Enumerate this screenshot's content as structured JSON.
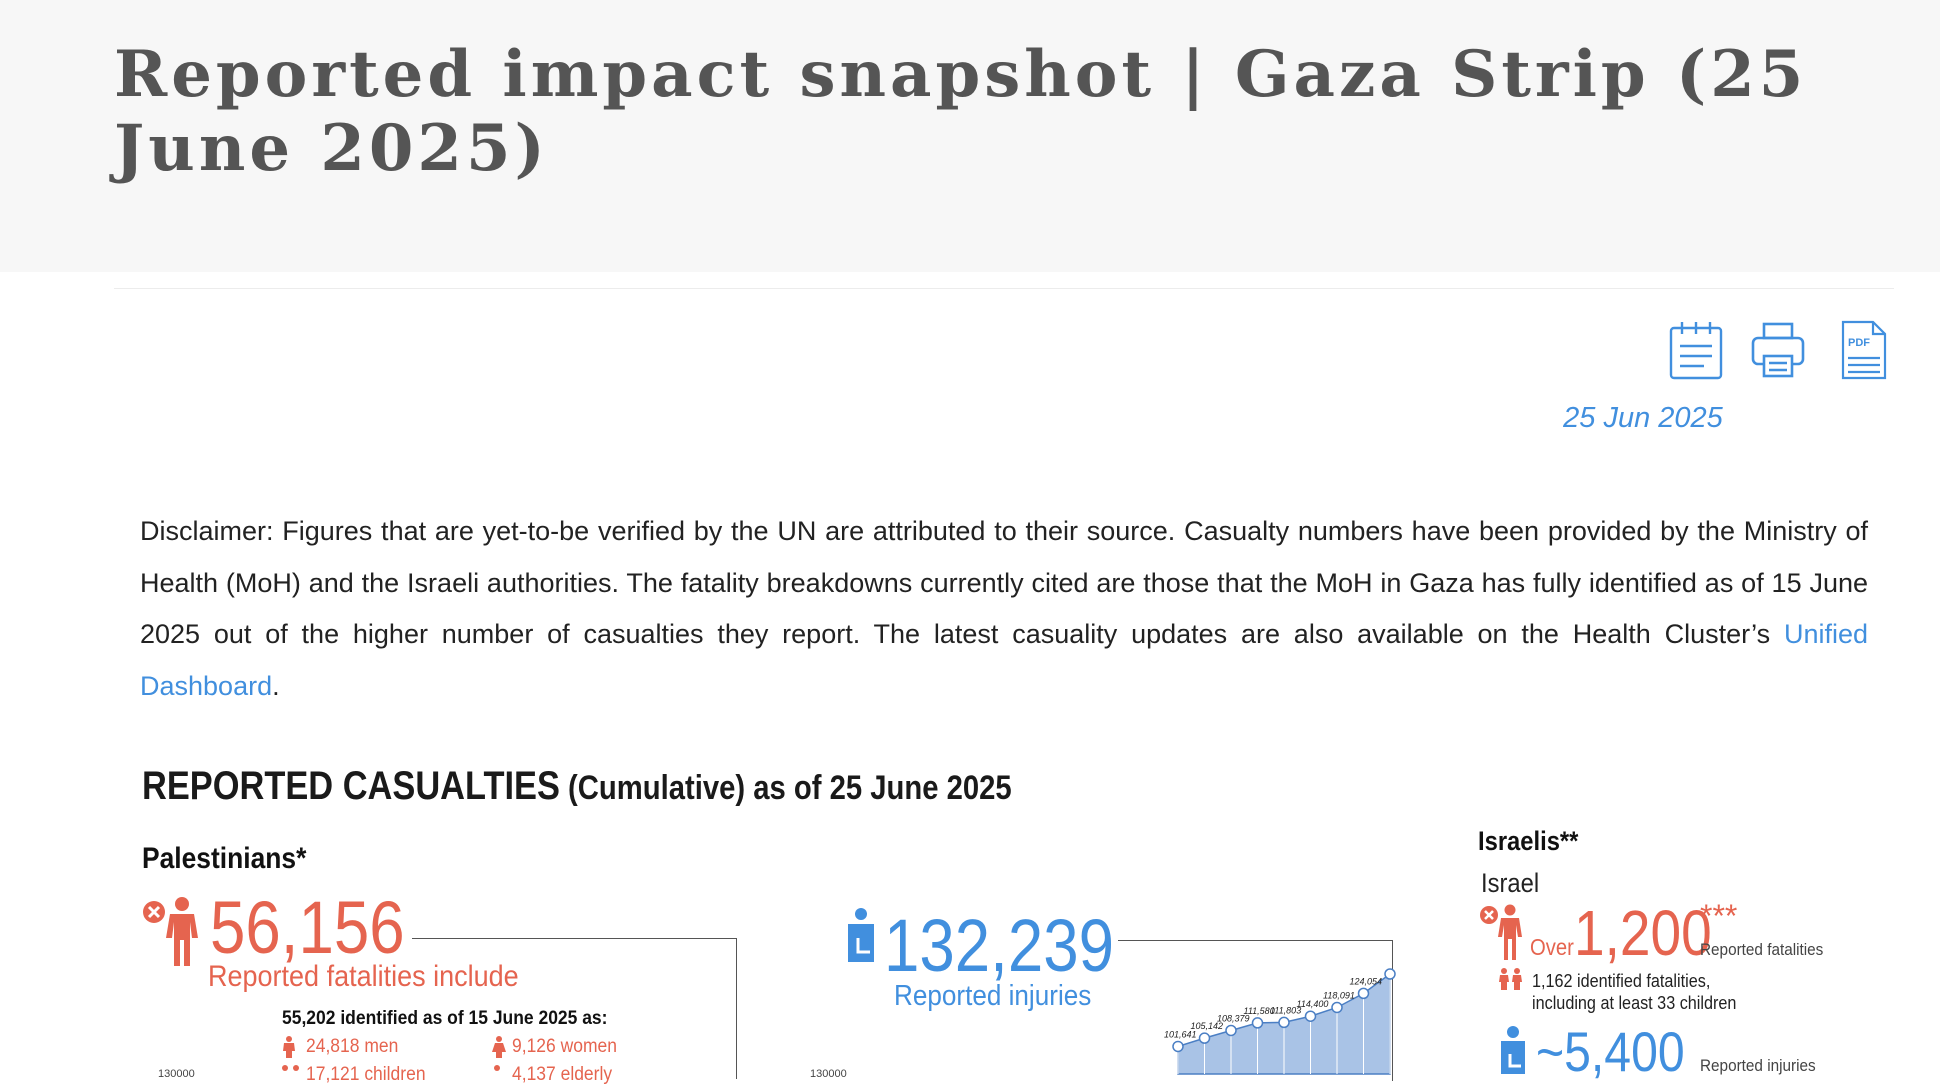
{
  "header": {
    "title": "Reported impact snapshot | Gaza Strip (25 June 2025)"
  },
  "toolbar": {
    "items": [
      {
        "name": "calendar-notes-icon"
      },
      {
        "name": "print-icon"
      },
      {
        "name": "pdf-icon",
        "label": "PDF"
      }
    ]
  },
  "date": "25 Jun 2025",
  "disclaimer": {
    "text": "Disclaimer: Figures that are yet-to-be verified by the UN are attributed to their source. Casualty numbers have been provided by the Ministry of Health (MoH) and the Israeli authorities. The fatality breakdowns currently cited are those that the MoH in Gaza has fully identified as of 15 June 2025 out of the higher number of casualties they report. The latest casuality updates are also available on the Health Cluster’s ",
    "link": "Unified Dashboard",
    "end": "."
  },
  "section": {
    "title_strong": "REPORTED CASUALTIES",
    "title_light": " (Cumulative) as of 25 June 2025"
  },
  "palestinians": {
    "label": "Palestinians*",
    "fatalities": "56,156",
    "fatalities_caption": "Reported fatalities include",
    "identified": "55,202 identified as of 15 June 2025 as:",
    "men": "24,818 men",
    "women": "9,126 women",
    "children": "17,121 children",
    "elderly": "4,137 elderly",
    "injuries": "132,239",
    "injuries_caption": "Reported injuries",
    "chart_tick": "130000"
  },
  "israelis": {
    "label": "Israelis**",
    "sub": "Israel",
    "over": "Over",
    "fatalities": "1,200",
    "stars": "***",
    "fatalities_caption": "Reported fatalities",
    "note_line1": "1,162 identified fatalities,",
    "note_line2": "including at least 33 children",
    "injuries": "~5,400",
    "injuries_caption": "Reported injuries"
  },
  "colors": {
    "fatality_red": "#e5644f",
    "injury_blue": "#418fde",
    "chart_fill": "#a9c3e6"
  },
  "chart_data": {
    "type": "area",
    "title": "",
    "xlabel": "",
    "ylabel": "",
    "values": [
      101641,
      105142,
      108379,
      111580,
      111803,
      114400,
      118091,
      124054,
      132239
    ],
    "labels": [
      "101,641",
      "105,142",
      "108,379",
      "111,580",
      "111,803",
      "114,400",
      "118,091",
      "124,054",
      ""
    ],
    "ylim": [
      90000,
      132239
    ]
  }
}
